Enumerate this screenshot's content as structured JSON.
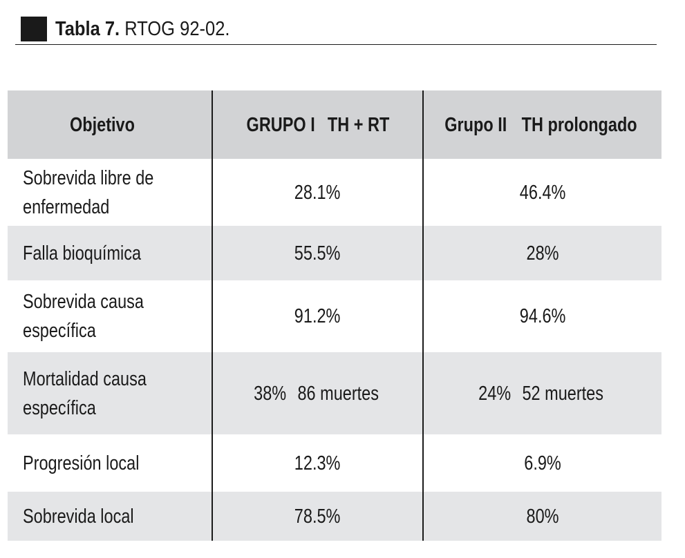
{
  "caption": {
    "label": "Tabla 7.",
    "title": "RTOG 92-02."
  },
  "table": {
    "headers": [
      {
        "lines": [
          "Objetivo"
        ]
      },
      {
        "lines": [
          "GRUPO I",
          "TH + RT"
        ]
      },
      {
        "lines": [
          "Grupo II",
          "TH prolongado"
        ]
      }
    ],
    "rows": [
      {
        "objective": [
          "Sobrevida libre de",
          "enfermedad"
        ],
        "group1": [
          "28.1%"
        ],
        "group2": [
          "46.4%"
        ]
      },
      {
        "objective": [
          "Falla bioquímica"
        ],
        "group1": [
          "55.5%"
        ],
        "group2": [
          "28%"
        ]
      },
      {
        "objective": [
          "Sobrevida causa",
          "específica"
        ],
        "group1": [
          "91.2%"
        ],
        "group2": [
          "94.6%"
        ]
      },
      {
        "objective": [
          "Mortalidad causa",
          "específica"
        ],
        "group1": [
          "38%",
          "86 muertes"
        ],
        "group2": [
          "24%",
          "52 muertes"
        ]
      },
      {
        "objective": [
          "Progresión local"
        ],
        "group1": [
          "12.3%"
        ],
        "group2": [
          "6.9%"
        ]
      },
      {
        "objective": [
          "Sobrevida local"
        ],
        "group1": [
          "78.5%"
        ],
        "group2": [
          "80%"
        ]
      }
    ]
  }
}
